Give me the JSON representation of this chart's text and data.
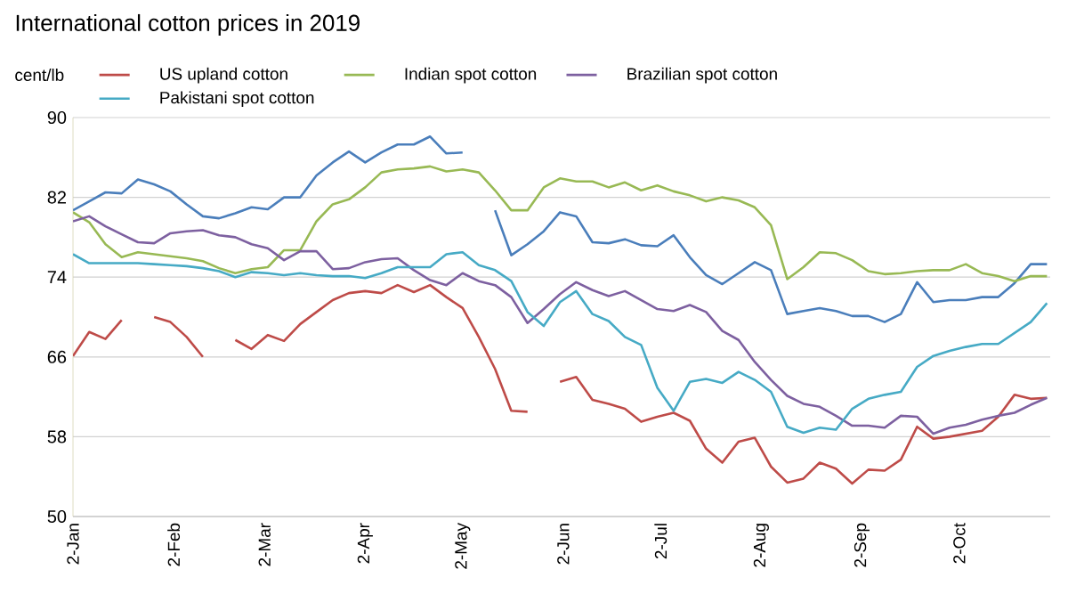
{
  "chart_data": {
    "type": "line",
    "title": "International cotton prices in 2019",
    "ylabel": "cent/lb",
    "x": [
      "2019-01-02",
      "2019-01-07",
      "2019-01-12",
      "2019-01-17",
      "2019-01-22",
      "2019-01-27",
      "2019-02-01",
      "2019-02-06",
      "2019-02-11",
      "2019-02-16",
      "2019-02-21",
      "2019-02-26",
      "2019-03-03",
      "2019-03-08",
      "2019-03-13",
      "2019-03-18",
      "2019-03-23",
      "2019-03-28",
      "2019-04-02",
      "2019-04-07",
      "2019-04-12",
      "2019-04-17",
      "2019-04-22",
      "2019-04-27",
      "2019-05-02",
      "2019-05-07",
      "2019-05-12",
      "2019-05-17",
      "2019-05-22",
      "2019-05-27",
      "2019-06-01",
      "2019-06-06",
      "2019-06-11",
      "2019-06-16",
      "2019-06-21",
      "2019-06-26",
      "2019-07-01",
      "2019-07-06",
      "2019-07-11",
      "2019-07-16",
      "2019-07-21",
      "2019-07-26",
      "2019-07-31",
      "2019-08-05",
      "2019-08-10",
      "2019-08-15",
      "2019-08-20",
      "2019-08-25",
      "2019-08-30",
      "2019-09-04",
      "2019-09-09",
      "2019-09-14",
      "2019-09-19",
      "2019-09-24",
      "2019-09-29",
      "2019-10-04",
      "2019-10-09",
      "2019-10-14",
      "2019-10-19",
      "2019-10-24",
      "2019-10-29"
    ],
    "series": [
      {
        "color": "#4a7ebb",
        "values": [
          80.7,
          81.6,
          82.5,
          82.4,
          83.8,
          83.3,
          82.6,
          81.3,
          80.1,
          79.9,
          80.4,
          81,
          80.8,
          82,
          82,
          84.2,
          85.5,
          86.6,
          85.5,
          86.5,
          87.3,
          87.3,
          88.1,
          86.4,
          86.5,
          null,
          80.7,
          76.2,
          77.3,
          78.6,
          80.5,
          80.1,
          77.5,
          77.4,
          77.8,
          77.2,
          77.1,
          78.2,
          76,
          74.2,
          73.3,
          74.4,
          75.5,
          74.7,
          70.3,
          70.6,
          70.9,
          70.6,
          70.1,
          70.1,
          69.5,
          70.3,
          73.5,
          71.5,
          71.7,
          71.7,
          72,
          72,
          73.4,
          75.3,
          75.3
        ]
      },
      {
        "name": "US upland cotton",
        "color": "#be4b48",
        "values": [
          66.1,
          68.5,
          67.8,
          69.7,
          null,
          70,
          69.5,
          68,
          66,
          null,
          67.7,
          66.8,
          68.2,
          67.6,
          69.3,
          70.5,
          71.7,
          72.4,
          72.6,
          72.4,
          73.2,
          72.5,
          73.2,
          72,
          70.9,
          68,
          64.8,
          60.6,
          60.5,
          null,
          63.5,
          64,
          61.7,
          61.3,
          60.8,
          59.5,
          60,
          60.4,
          59.6,
          56.8,
          55.4,
          57.5,
          57.9,
          55,
          53.4,
          53.8,
          55.4,
          54.8,
          53.3,
          54.7,
          54.6,
          55.7,
          59,
          57.8,
          58,
          58.3,
          58.6,
          60,
          62.2,
          61.8,
          61.9
        ]
      },
      {
        "name": "Indian spot cotton",
        "color": "#98b954",
        "values": [
          80.5,
          79.5,
          77.3,
          76,
          76.5,
          76.3,
          76.1,
          75.9,
          75.6,
          74.9,
          74.4,
          74.8,
          75,
          76.7,
          76.7,
          79.6,
          81.3,
          81.8,
          83,
          84.5,
          84.8,
          84.9,
          85.1,
          84.6,
          84.8,
          84.5,
          82.7,
          80.7,
          80.7,
          83,
          83.9,
          83.6,
          83.6,
          83,
          83.5,
          82.7,
          83.2,
          82.6,
          82.2,
          81.6,
          82,
          81.7,
          81,
          79.2,
          73.8,
          75,
          76.5,
          76.4,
          75.7,
          74.6,
          74.3,
          74.4,
          74.6,
          74.7,
          74.7,
          75.3,
          74.4,
          74.1,
          73.6,
          74.1,
          74.1
        ]
      },
      {
        "name": "Brazilian spot cotton",
        "color": "#7d60a0",
        "values": [
          79.6,
          80.1,
          79.1,
          78.3,
          77.5,
          77.4,
          78.4,
          78.6,
          78.7,
          78.2,
          78,
          77.3,
          76.9,
          75.7,
          76.6,
          76.6,
          74.8,
          74.9,
          75.5,
          75.8,
          75.9,
          74.7,
          73.7,
          73.2,
          74.4,
          73.6,
          73.2,
          72,
          69.4,
          70.8,
          72.3,
          73.5,
          72.7,
          72.1,
          72.6,
          71.7,
          70.8,
          70.6,
          71.2,
          70.5,
          68.6,
          67.7,
          65.5,
          63.7,
          62.1,
          61.3,
          61,
          60.1,
          59.1,
          59.1,
          58.9,
          60.1,
          60,
          58.3,
          58.9,
          59.2,
          59.7,
          60.1,
          60.4,
          61.2,
          61.9
        ]
      },
      {
        "name": "Pakistani spot cotton",
        "color": "#46aac5",
        "values": [
          76.3,
          75.4,
          75.4,
          75.4,
          75.4,
          75.3,
          75.2,
          75.1,
          74.9,
          74.6,
          74,
          74.5,
          74.4,
          74.2,
          74.4,
          74.2,
          74.1,
          74.1,
          73.9,
          74.4,
          75,
          75,
          75,
          76.3,
          76.5,
          75.2,
          74.7,
          73.6,
          70.5,
          69.1,
          71.5,
          72.6,
          70.3,
          69.6,
          68,
          67.2,
          62.9,
          60.6,
          63.5,
          63.8,
          63.4,
          64.5,
          63.7,
          62.5,
          59,
          58.4,
          58.9,
          58.7,
          60.8,
          61.8,
          62.2,
          62.5,
          65,
          66.1,
          66.6,
          67,
          67.3,
          67.3,
          68.4,
          69.5,
          71.4
        ]
      }
    ],
    "xlim": [
      "2019-01-02",
      "2019-10-30"
    ],
    "xticks": [
      {
        "value": "2019-01-02",
        "label": "2-Jan"
      },
      {
        "value": "2019-02-02",
        "label": "2-Feb"
      },
      {
        "value": "2019-03-02",
        "label": "2-Mar"
      },
      {
        "value": "2019-04-02",
        "label": "2-Apr"
      },
      {
        "value": "2019-05-02",
        "label": "2-May"
      },
      {
        "value": "2019-06-02",
        "label": "2-Jun"
      },
      {
        "value": "2019-07-02",
        "label": "2-Jul"
      },
      {
        "value": "2019-08-02",
        "label": "2-Aug"
      },
      {
        "value": "2019-09-02",
        "label": "2-Sep"
      },
      {
        "value": "2019-10-02",
        "label": "2-Oct"
      }
    ],
    "ylim": [
      50,
      90
    ],
    "yticks": [
      50,
      58,
      66,
      74,
      82,
      90
    ],
    "grid": "y",
    "legend": "top"
  }
}
